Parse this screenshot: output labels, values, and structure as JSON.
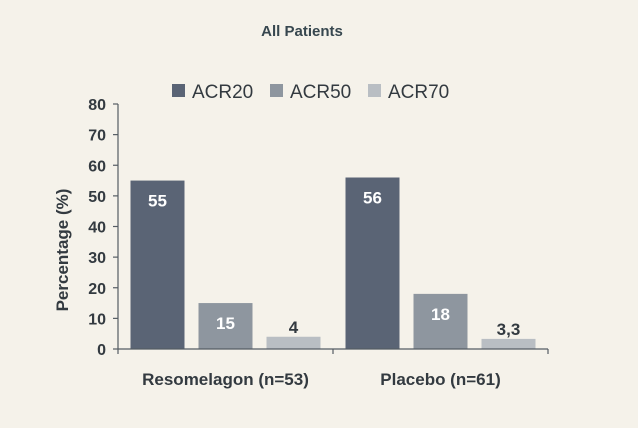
{
  "chart_data": {
    "type": "bar",
    "title": "All Patients",
    "ylabel": "Percentage (%)",
    "xlabel": "",
    "ylim": [
      0,
      80
    ],
    "yticks": [
      0,
      10,
      20,
      30,
      40,
      50,
      60,
      70,
      80
    ],
    "categories": [
      "Resomelagon (n=53)",
      "Placebo (n=61)"
    ],
    "legend_position": "top",
    "grid": false,
    "series": [
      {
        "name": "ACR20",
        "color": "#5a6475",
        "values": [
          55,
          56
        ],
        "labels": [
          "55",
          "56"
        ]
      },
      {
        "name": "ACR50",
        "color": "#8e969f",
        "values": [
          15,
          18
        ],
        "labels": [
          "15",
          "18"
        ]
      },
      {
        "name": "ACR70",
        "color": "#b9bec3",
        "values": [
          4,
          3.3
        ],
        "labels": [
          "4",
          "3,3"
        ]
      }
    ]
  }
}
